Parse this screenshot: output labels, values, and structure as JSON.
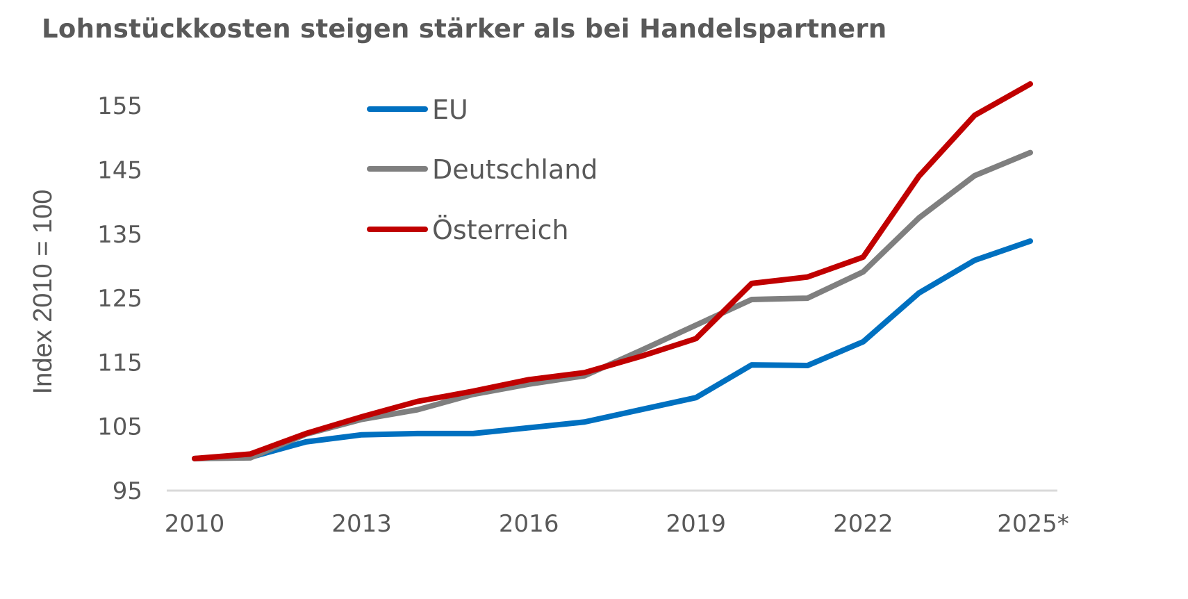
{
  "chart_data": {
    "type": "line",
    "title": "Lohnstückkosten steigen stärker als bei Handelspartnern",
    "xlabel": "",
    "ylabel": "Index 2010 = 100",
    "x": [
      "2010",
      "2011",
      "2012",
      "2013",
      "2014",
      "2015",
      "2016",
      "2017",
      "2018",
      "2019",
      "2020",
      "2021",
      "2022",
      "2023",
      "2024",
      "2025*"
    ],
    "x_tick_labels": [
      "2010",
      "2013",
      "2016",
      "2019",
      "2022",
      "2025*"
    ],
    "y_tick_labels": [
      "95",
      "105",
      "115",
      "125",
      "135",
      "145",
      "155"
    ],
    "ylim": [
      95,
      160
    ],
    "grid": false,
    "legend_position": "top-center",
    "series": [
      {
        "name": "EU",
        "color": "#0070C0",
        "values": [
          100,
          100.2,
          102.6,
          103.7,
          103.9,
          103.9,
          104.8,
          105.7,
          107.6,
          109.5,
          114.6,
          114.5,
          118.2,
          125.8,
          130.9,
          133.9
        ]
      },
      {
        "name": "Deutschland",
        "color": "#7F7F7F",
        "values": [
          100,
          100.1,
          103.8,
          106.1,
          107.6,
          110.0,
          111.6,
          112.9,
          116.8,
          120.8,
          124.8,
          125.0,
          129.1,
          137.5,
          144.1,
          147.7
        ]
      },
      {
        "name": "Österreich",
        "color": "#C00000",
        "values": [
          100,
          100.7,
          103.9,
          106.5,
          108.9,
          110.5,
          112.3,
          113.4,
          115.9,
          118.7,
          127.3,
          128.3,
          131.4,
          144.0,
          153.5,
          158.4
        ]
      }
    ]
  }
}
